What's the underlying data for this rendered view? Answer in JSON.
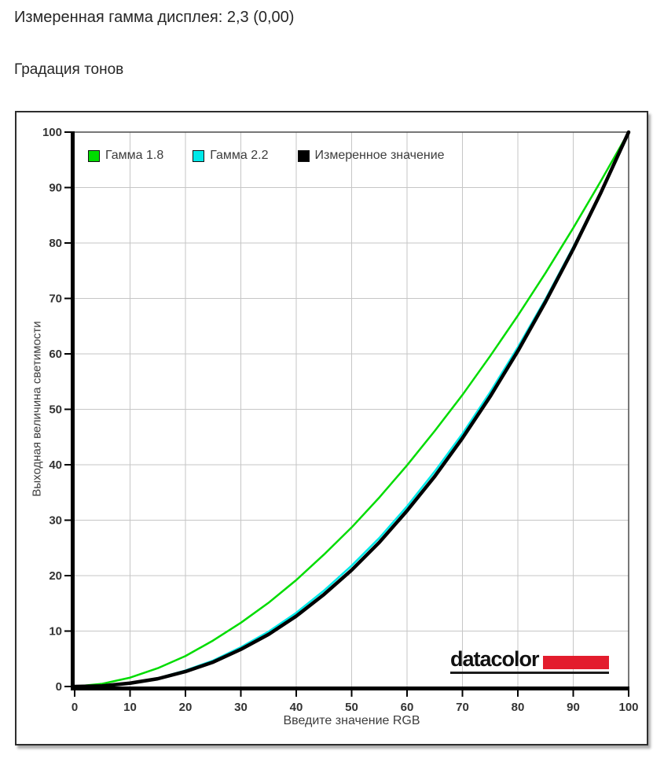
{
  "header": {
    "measured_gamma": "Измеренная гамма дисплея: 2,3 (0,00)",
    "section_title": "Градация тонов"
  },
  "chart_data": {
    "type": "line",
    "title": "",
    "xlabel": "Введите значение RGB",
    "ylabel": "Выходная величина светимости",
    "xlim": [
      0,
      100
    ],
    "ylim": [
      0,
      100
    ],
    "xticks": [
      0,
      10,
      20,
      30,
      40,
      50,
      60,
      70,
      80,
      90,
      100
    ],
    "yticks": [
      0,
      10,
      20,
      30,
      40,
      50,
      60,
      70,
      80,
      90,
      100
    ],
    "grid": true,
    "grid_color": "#c6c6c6",
    "legend_position": "top-left-inside",
    "x": [
      0,
      5,
      10,
      15,
      20,
      25,
      30,
      35,
      40,
      45,
      50,
      55,
      60,
      65,
      70,
      75,
      80,
      85,
      90,
      95,
      100
    ],
    "series": [
      {
        "name": "Гамма 1.8",
        "color": "#00dc00",
        "line_width": 2.5,
        "values": [
          0,
          0.5,
          1.6,
          3.3,
          5.5,
          8.3,
          11.5,
          15.1,
          19.2,
          23.8,
          28.7,
          34.1,
          39.9,
          46.1,
          52.6,
          59.6,
          66.9,
          74.6,
          82.7,
          91.2,
          100
        ]
      },
      {
        "name": "Гамма 2.2",
        "color": "#00e9e9",
        "line_width": 2.5,
        "values": [
          0,
          0.1,
          0.6,
          1.5,
          2.9,
          4.7,
          7.1,
          9.9,
          13.3,
          17.3,
          21.8,
          26.8,
          32.5,
          38.8,
          45.6,
          53.1,
          61.2,
          69.9,
          79.3,
          89.3,
          100
        ]
      },
      {
        "name": "Измеренное значение",
        "color": "#000000",
        "line_width": 4.5,
        "values": [
          0,
          0.1,
          0.6,
          1.4,
          2.7,
          4.4,
          6.7,
          9.4,
          12.7,
          16.6,
          21.0,
          26.0,
          31.7,
          37.9,
          44.8,
          52.3,
          60.5,
          69.4,
          78.9,
          89.1,
          100
        ]
      }
    ]
  },
  "logo": {
    "text": "datacolor",
    "bar_color": "#e31c2d"
  }
}
